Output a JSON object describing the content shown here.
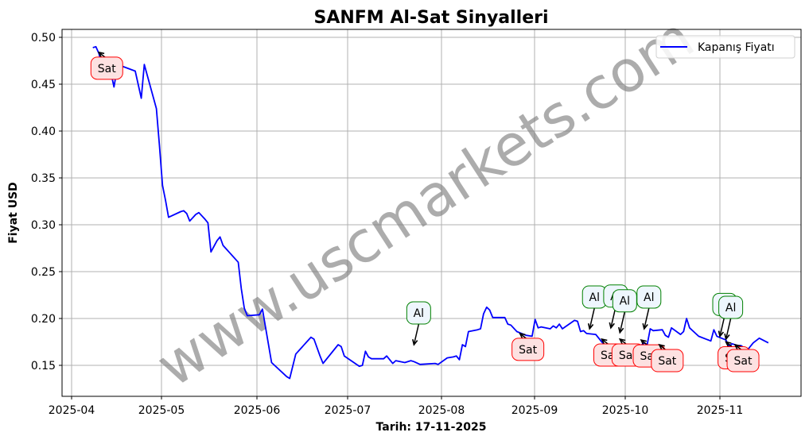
{
  "chart_data": {
    "type": "line",
    "title": "SANFM Al-Sat Sinyalleri",
    "xlabel": "Tarih: 17-11-2025",
    "ylabel": "Fiyat USD",
    "ylim": [
      0.117,
      0.508
    ],
    "xlim": [
      "2025-03-27",
      "2025-11-25"
    ],
    "grid": true,
    "legend": {
      "position": "upper right",
      "entries": [
        "Kapanış Fiyatı"
      ]
    },
    "x_ticks": [
      "2025-04",
      "2025-05",
      "2025-06",
      "2025-07",
      "2025-08",
      "2025-09",
      "2025-10",
      "2025-11"
    ],
    "y_ticks": [
      "0.15",
      "0.20",
      "0.25",
      "0.30",
      "0.35",
      "0.40",
      "0.45",
      "0.50"
    ],
    "series": [
      {
        "name": "Kapanış Fiyatı",
        "color": "#0000ff",
        "points": [
          [
            "2025-04-08",
            0.489
          ],
          [
            "2025-04-09",
            0.49
          ],
          [
            "2025-04-10",
            0.483
          ],
          [
            "2025-04-11",
            0.47
          ],
          [
            "2025-04-14",
            0.462
          ],
          [
            "2025-04-15",
            0.447
          ],
          [
            "2025-04-16",
            0.466
          ],
          [
            "2025-04-17",
            0.47
          ],
          [
            "2025-04-22",
            0.464
          ],
          [
            "2025-04-24",
            0.435
          ],
          [
            "2025-04-25",
            0.471
          ],
          [
            "2025-04-29",
            0.424
          ],
          [
            "2025-04-30",
            0.385
          ],
          [
            "2025-05-01",
            0.342
          ],
          [
            "2025-05-02",
            0.326
          ],
          [
            "2025-05-03",
            0.308
          ],
          [
            "2025-05-07",
            0.314
          ],
          [
            "2025-05-08",
            0.315
          ],
          [
            "2025-05-09",
            0.312
          ],
          [
            "2025-05-10",
            0.304
          ],
          [
            "2025-05-12",
            0.311
          ],
          [
            "2025-05-13",
            0.313
          ],
          [
            "2025-05-15",
            0.306
          ],
          [
            "2025-05-16",
            0.302
          ],
          [
            "2025-05-17",
            0.271
          ],
          [
            "2025-05-19",
            0.283
          ],
          [
            "2025-05-20",
            0.287
          ],
          [
            "2025-05-21",
            0.278
          ],
          [
            "2025-05-26",
            0.26
          ],
          [
            "2025-05-27",
            0.232
          ],
          [
            "2025-05-28",
            0.211
          ],
          [
            "2025-05-29",
            0.203
          ],
          [
            "2025-06-02",
            0.204
          ],
          [
            "2025-06-03",
            0.21
          ],
          [
            "2025-06-06",
            0.153
          ],
          [
            "2025-06-11",
            0.138
          ],
          [
            "2025-06-12",
            0.136
          ],
          [
            "2025-06-14",
            0.162
          ],
          [
            "2025-06-19",
            0.18
          ],
          [
            "2025-06-20",
            0.178
          ],
          [
            "2025-06-22",
            0.16
          ],
          [
            "2025-06-23",
            0.152
          ],
          [
            "2025-06-28",
            0.172
          ],
          [
            "2025-06-29",
            0.17
          ],
          [
            "2025-06-30",
            0.16
          ],
          [
            "2025-07-05",
            0.149
          ],
          [
            "2025-07-06",
            0.15
          ],
          [
            "2025-07-07",
            0.165
          ],
          [
            "2025-07-08",
            0.159
          ],
          [
            "2025-07-09",
            0.157
          ],
          [
            "2025-07-13",
            0.157
          ],
          [
            "2025-07-14",
            0.16
          ],
          [
            "2025-07-16",
            0.152
          ],
          [
            "2025-07-17",
            0.155
          ],
          [
            "2025-07-20",
            0.153
          ],
          [
            "2025-07-22",
            0.155
          ],
          [
            "2025-07-23",
            0.154
          ],
          [
            "2025-07-25",
            0.151
          ],
          [
            "2025-07-30",
            0.152
          ],
          [
            "2025-07-31",
            0.151
          ],
          [
            "2025-08-03",
            0.158
          ],
          [
            "2025-08-05",
            0.159
          ],
          [
            "2025-08-06",
            0.16
          ],
          [
            "2025-08-07",
            0.156
          ],
          [
            "2025-08-08",
            0.172
          ],
          [
            "2025-08-09",
            0.17
          ],
          [
            "2025-08-10",
            0.186
          ],
          [
            "2025-08-13",
            0.188
          ],
          [
            "2025-08-14",
            0.189
          ],
          [
            "2025-08-15",
            0.205
          ],
          [
            "2025-08-16",
            0.212
          ],
          [
            "2025-08-17",
            0.209
          ],
          [
            "2025-08-18",
            0.201
          ],
          [
            "2025-08-22",
            0.201
          ],
          [
            "2025-08-23",
            0.194
          ],
          [
            "2025-08-24",
            0.193
          ],
          [
            "2025-08-26",
            0.186
          ],
          [
            "2025-08-29",
            0.182
          ],
          [
            "2025-08-31",
            0.181
          ],
          [
            "2025-09-01",
            0.199
          ],
          [
            "2025-09-02",
            0.19
          ],
          [
            "2025-09-03",
            0.191
          ],
          [
            "2025-09-06",
            0.189
          ],
          [
            "2025-09-07",
            0.192
          ],
          [
            "2025-09-08",
            0.19
          ],
          [
            "2025-09-09",
            0.194
          ],
          [
            "2025-09-10",
            0.189
          ],
          [
            "2025-09-14",
            0.198
          ],
          [
            "2025-09-15",
            0.197
          ],
          [
            "2025-09-16",
            0.186
          ],
          [
            "2025-09-17",
            0.187
          ],
          [
            "2025-09-18",
            0.184
          ],
          [
            "2025-09-21",
            0.183
          ],
          [
            "2025-09-23",
            0.175
          ],
          [
            "2025-09-25",
            0.168
          ],
          [
            "2025-09-28",
            0.164
          ],
          [
            "2025-09-29",
            0.172
          ],
          [
            "2025-10-01",
            0.166
          ],
          [
            "2025-10-02",
            0.163
          ],
          [
            "2025-10-05",
            0.169
          ],
          [
            "2025-10-07",
            0.174
          ],
          [
            "2025-10-08",
            0.172
          ],
          [
            "2025-10-09",
            0.189
          ],
          [
            "2025-10-10",
            0.187
          ],
          [
            "2025-10-13",
            0.188
          ],
          [
            "2025-10-14",
            0.182
          ],
          [
            "2025-10-15",
            0.18
          ],
          [
            "2025-10-16",
            0.19
          ],
          [
            "2025-10-19",
            0.183
          ],
          [
            "2025-10-20",
            0.186
          ],
          [
            "2025-10-21",
            0.2
          ],
          [
            "2025-10-22",
            0.19
          ],
          [
            "2025-10-25",
            0.181
          ],
          [
            "2025-10-29",
            0.176
          ],
          [
            "2025-10-30",
            0.188
          ],
          [
            "2025-10-31",
            0.181
          ],
          [
            "2025-11-03",
            0.177
          ],
          [
            "2025-11-04",
            0.17
          ],
          [
            "2025-11-05",
            0.173
          ],
          [
            "2025-11-07",
            0.171
          ],
          [
            "2025-11-08",
            0.171
          ],
          [
            "2025-11-10",
            0.166
          ],
          [
            "2025-11-12",
            0.174
          ],
          [
            "2025-11-14",
            0.179
          ],
          [
            "2025-11-17",
            0.174
          ]
        ]
      }
    ],
    "annotations": [
      {
        "label": "Sat",
        "type": "sell",
        "date": "2025-04-10",
        "price": 0.484
      },
      {
        "label": "Al",
        "type": "buy",
        "date": "2025-07-23",
        "price": 0.172
      },
      {
        "label": "Sat",
        "type": "sell",
        "date": "2025-08-27",
        "price": 0.184
      },
      {
        "label": "Al",
        "type": "buy",
        "date": "2025-09-19",
        "price": 0.189
      },
      {
        "label": "Al",
        "type": "buy",
        "date": "2025-09-26",
        "price": 0.19
      },
      {
        "label": "Sat",
        "type": "sell",
        "date": "2025-09-23",
        "price": 0.178
      },
      {
        "label": "Al",
        "type": "buy",
        "date": "2025-09-29",
        "price": 0.185
      },
      {
        "label": "Sat",
        "type": "sell",
        "date": "2025-09-29",
        "price": 0.178
      },
      {
        "label": "Al",
        "type": "buy",
        "date": "2025-10-07",
        "price": 0.189
      },
      {
        "label": "Sat",
        "type": "sell",
        "date": "2025-10-06",
        "price": 0.177
      },
      {
        "label": "Sat",
        "type": "sell",
        "date": "2025-10-12",
        "price": 0.172
      },
      {
        "label": "Al",
        "type": "buy",
        "date": "2025-11-01",
        "price": 0.181
      },
      {
        "label": "Al",
        "type": "buy",
        "date": "2025-11-03",
        "price": 0.178
      },
      {
        "label": "Sat",
        "type": "sell",
        "date": "2025-11-03",
        "price": 0.175
      },
      {
        "label": "Sat",
        "type": "sell",
        "date": "2025-11-06",
        "price": 0.172
      }
    ],
    "watermark": "www.uscmarkets.com"
  },
  "colors": {
    "line": "#0000ff",
    "buy_edge": "#008000",
    "buy_fill": "#eef6fd",
    "sell_edge": "#ff0000",
    "sell_fill": "#fde1e1",
    "grid": "#b0b0b0"
  }
}
